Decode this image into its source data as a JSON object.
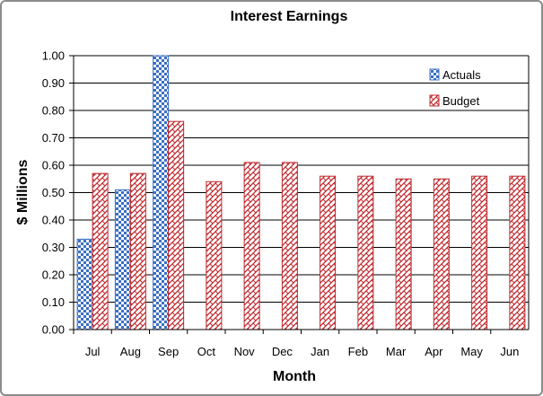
{
  "chart_data": {
    "type": "bar",
    "title": "Interest Earnings",
    "xlabel": "Month",
    "ylabel": "$ Millions",
    "categories": [
      "Jul",
      "Aug",
      "Sep",
      "Oct",
      "Nov",
      "Dec",
      "Jan",
      "Feb",
      "Mar",
      "Apr",
      "May",
      "Jun"
    ],
    "series": [
      {
        "name": "Actuals",
        "values": [
          0.33,
          0.51,
          1.0,
          null,
          null,
          null,
          null,
          null,
          null,
          null,
          null,
          null
        ],
        "color": "#3a6fc4"
      },
      {
        "name": "Budget",
        "values": [
          0.57,
          0.57,
          0.76,
          0.54,
          0.61,
          0.61,
          0.56,
          0.56,
          0.55,
          0.55,
          0.56,
          0.56
        ],
        "color": "#c0282d"
      }
    ],
    "ylim": [
      0,
      1.0
    ],
    "yticks": [
      "0.00",
      "0.10",
      "0.20",
      "0.30",
      "0.40",
      "0.50",
      "0.60",
      "0.70",
      "0.80",
      "0.90",
      "1.00"
    ],
    "grid": true,
    "legend_position": "top-right"
  }
}
